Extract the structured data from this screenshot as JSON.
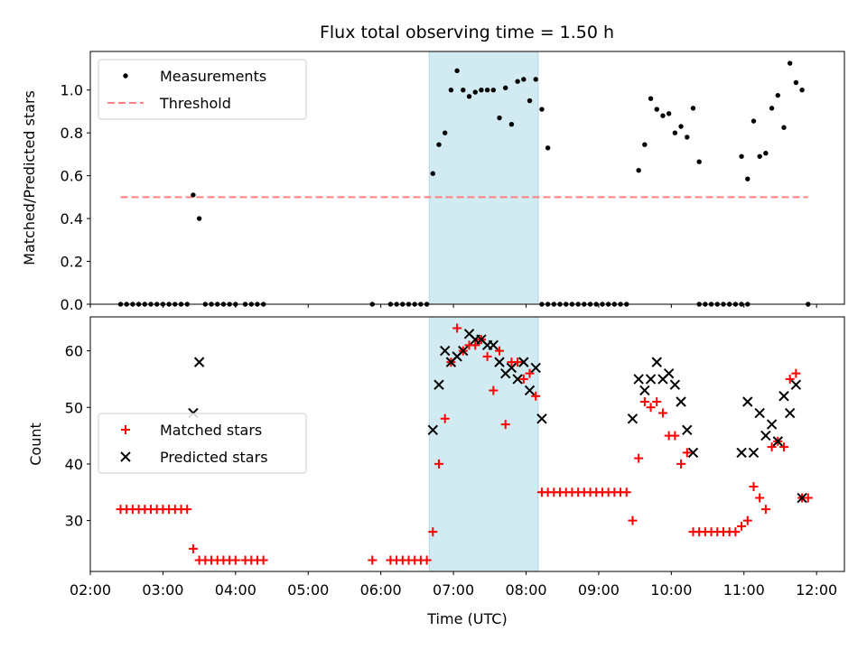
{
  "title": "Flux total observing time = 1.50 h",
  "colors": {
    "threshold": "#ff7f7f",
    "matched": "#ff0000",
    "predicted": "#000000",
    "measurement": "#000000",
    "shade": "#add8e6"
  },
  "chart_data": [
    {
      "type": "scatter",
      "ylabel": "Matched/Predicted stars",
      "xlabel": "",
      "xlim": [
        "02:00",
        "12:23"
      ],
      "ylim": [
        0,
        1.18
      ],
      "x_ticks": [
        "02:00",
        "03:00",
        "04:00",
        "05:00",
        "06:00",
        "07:00",
        "08:00",
        "09:00",
        "10:00",
        "11:00",
        "12:00"
      ],
      "y_ticks": [
        "0.0",
        "0.2",
        "0.4",
        "0.6",
        "0.8",
        "1.0"
      ],
      "y_tick_values": [
        0,
        0.2,
        0.4,
        0.6,
        0.8,
        1.0
      ],
      "shaded_span": [
        "06:40",
        "08:10"
      ],
      "legend": {
        "location": "upper left",
        "entries": [
          "Measurements",
          "Threshold"
        ]
      },
      "threshold": {
        "name": "Threshold",
        "value": 0.5,
        "x_range": [
          "02:25",
          "11:53"
        ]
      },
      "series": [
        {
          "name": "Measurements",
          "points": [
            [
              "02:25",
              0
            ],
            [
              "02:30",
              0
            ],
            [
              "02:35",
              0
            ],
            [
              "02:40",
              0
            ],
            [
              "02:45",
              0
            ],
            [
              "02:50",
              0
            ],
            [
              "02:55",
              0
            ],
            [
              "03:00",
              0
            ],
            [
              "03:05",
              0
            ],
            [
              "03:10",
              0
            ],
            [
              "03:15",
              0
            ],
            [
              "03:20",
              0
            ],
            [
              "03:25",
              0.51
            ],
            [
              "03:30",
              0.4
            ],
            [
              "03:35",
              0
            ],
            [
              "03:40",
              0
            ],
            [
              "03:45",
              0
            ],
            [
              "03:50",
              0
            ],
            [
              "03:55",
              0
            ],
            [
              "04:00",
              0
            ],
            [
              "04:08",
              0
            ],
            [
              "04:13",
              0
            ],
            [
              "04:18",
              0
            ],
            [
              "04:23",
              0
            ],
            [
              "05:53",
              0
            ],
            [
              "06:08",
              0
            ],
            [
              "06:13",
              0
            ],
            [
              "06:18",
              0
            ],
            [
              "06:23",
              0
            ],
            [
              "06:28",
              0
            ],
            [
              "06:33",
              0
            ],
            [
              "06:38",
              0
            ],
            [
              "06:43",
              0.61
            ],
            [
              "06:48",
              0.745
            ],
            [
              "06:53",
              0.8
            ],
            [
              "06:58",
              1.0
            ],
            [
              "07:03",
              1.09
            ],
            [
              "07:08",
              1.0
            ],
            [
              "07:13",
              0.97
            ],
            [
              "07:18",
              0.99
            ],
            [
              "07:23",
              1.0
            ],
            [
              "07:28",
              1.0
            ],
            [
              "07:33",
              1.0
            ],
            [
              "07:38",
              0.87
            ],
            [
              "07:43",
              1.01
            ],
            [
              "07:48",
              0.84
            ],
            [
              "07:53",
              1.04
            ],
            [
              "07:58",
              1.05
            ],
            [
              "08:03",
              0.95
            ],
            [
              "08:08",
              1.05
            ],
            [
              "08:13",
              0.91
            ],
            [
              "08:18",
              0.73
            ],
            [
              "08:13",
              0
            ],
            [
              "08:18",
              0
            ],
            [
              "08:23",
              0
            ],
            [
              "08:28",
              0
            ],
            [
              "08:33",
              0
            ],
            [
              "08:38",
              0
            ],
            [
              "08:43",
              0
            ],
            [
              "08:48",
              0
            ],
            [
              "08:53",
              0
            ],
            [
              "08:58",
              0
            ],
            [
              "09:03",
              0
            ],
            [
              "09:08",
              0
            ],
            [
              "09:13",
              0
            ],
            [
              "09:18",
              0
            ],
            [
              "09:23",
              0
            ],
            [
              "09:33",
              0.625
            ],
            [
              "09:38",
              0.745
            ],
            [
              "09:43",
              0.96
            ],
            [
              "09:48",
              0.91
            ],
            [
              "09:53",
              0.88
            ],
            [
              "09:58",
              0.89
            ],
            [
              "10:03",
              0.8
            ],
            [
              "10:08",
              0.83
            ],
            [
              "10:13",
              0.78
            ],
            [
              "10:18",
              0.915
            ],
            [
              "10:23",
              0.665
            ],
            [
              "10:23",
              0
            ],
            [
              "10:28",
              0
            ],
            [
              "10:33",
              0
            ],
            [
              "10:38",
              0
            ],
            [
              "10:43",
              0
            ],
            [
              "10:48",
              0
            ],
            [
              "10:53",
              0
            ],
            [
              "10:58",
              0
            ],
            [
              "11:03",
              0
            ],
            [
              "10:58",
              0.69
            ],
            [
              "11:03",
              0.585
            ],
            [
              "11:08",
              0.855
            ],
            [
              "11:13",
              0.69
            ],
            [
              "11:18",
              0.705
            ],
            [
              "11:23",
              0.915
            ],
            [
              "11:28",
              0.975
            ],
            [
              "11:33",
              0.825
            ],
            [
              "11:38",
              1.125
            ],
            [
              "11:43",
              1.035
            ],
            [
              "11:48",
              1.0
            ],
            [
              "11:53",
              0
            ]
          ]
        }
      ]
    },
    {
      "type": "scatter",
      "ylabel": "Count",
      "xlabel": "Time (UTC)",
      "xlim": [
        "02:00",
        "12:23"
      ],
      "ylim": [
        21,
        66
      ],
      "x_ticks": [
        "02:00",
        "03:00",
        "04:00",
        "05:00",
        "06:00",
        "07:00",
        "08:00",
        "09:00",
        "10:00",
        "11:00",
        "12:00"
      ],
      "y_ticks": [
        "30",
        "40",
        "50",
        "60"
      ],
      "y_tick_values": [
        30,
        40,
        50,
        60
      ],
      "shaded_span": [
        "06:40",
        "08:10"
      ],
      "legend": {
        "location": "center left",
        "entries": [
          "Matched stars",
          "Predicted stars"
        ]
      },
      "series": [
        {
          "name": "Matched stars",
          "marker": "+",
          "points": [
            [
              "02:25",
              32
            ],
            [
              "02:30",
              32
            ],
            [
              "02:35",
              32
            ],
            [
              "02:40",
              32
            ],
            [
              "02:45",
              32
            ],
            [
              "02:50",
              32
            ],
            [
              "02:55",
              32
            ],
            [
              "03:00",
              32
            ],
            [
              "03:05",
              32
            ],
            [
              "03:10",
              32
            ],
            [
              "03:15",
              32
            ],
            [
              "03:20",
              32
            ],
            [
              "03:25",
              25
            ],
            [
              "03:30",
              23
            ],
            [
              "03:35",
              23
            ],
            [
              "03:40",
              23
            ],
            [
              "03:45",
              23
            ],
            [
              "03:50",
              23
            ],
            [
              "03:55",
              23
            ],
            [
              "04:00",
              23
            ],
            [
              "04:08",
              23
            ],
            [
              "04:13",
              23
            ],
            [
              "04:18",
              23
            ],
            [
              "04:23",
              23
            ],
            [
              "05:53",
              23
            ],
            [
              "06:08",
              23
            ],
            [
              "06:13",
              23
            ],
            [
              "06:18",
              23
            ],
            [
              "06:23",
              23
            ],
            [
              "06:28",
              23
            ],
            [
              "06:33",
              23
            ],
            [
              "06:38",
              23
            ],
            [
              "06:43",
              28
            ],
            [
              "06:48",
              40
            ],
            [
              "06:53",
              48
            ],
            [
              "06:58",
              58
            ],
            [
              "07:03",
              64
            ],
            [
              "07:08",
              60
            ],
            [
              "07:13",
              61
            ],
            [
              "07:18",
              61
            ],
            [
              "07:23",
              62
            ],
            [
              "07:28",
              59
            ],
            [
              "07:33",
              53
            ],
            [
              "07:38",
              60
            ],
            [
              "07:43",
              47
            ],
            [
              "07:48",
              58
            ],
            [
              "07:53",
              58
            ],
            [
              "07:58",
              55
            ],
            [
              "08:03",
              56
            ],
            [
              "08:08",
              52
            ],
            [
              "08:13",
              35
            ],
            [
              "08:18",
              35
            ],
            [
              "08:23",
              35
            ],
            [
              "08:28",
              35
            ],
            [
              "08:33",
              35
            ],
            [
              "08:38",
              35
            ],
            [
              "08:43",
              35
            ],
            [
              "08:48",
              35
            ],
            [
              "08:53",
              35
            ],
            [
              "08:58",
              35
            ],
            [
              "09:03",
              35
            ],
            [
              "09:08",
              35
            ],
            [
              "09:13",
              35
            ],
            [
              "09:18",
              35
            ],
            [
              "09:23",
              35
            ],
            [
              "09:28",
              30
            ],
            [
              "09:33",
              41
            ],
            [
              "09:38",
              51
            ],
            [
              "09:43",
              50
            ],
            [
              "09:48",
              51
            ],
            [
              "09:53",
              49
            ],
            [
              "09:58",
              45
            ],
            [
              "10:03",
              45
            ],
            [
              "10:08",
              40
            ],
            [
              "10:13",
              42
            ],
            [
              "10:18",
              28
            ],
            [
              "10:23",
              28
            ],
            [
              "10:28",
              28
            ],
            [
              "10:33",
              28
            ],
            [
              "10:38",
              28
            ],
            [
              "10:43",
              28
            ],
            [
              "10:48",
              28
            ],
            [
              "10:53",
              28
            ],
            [
              "10:58",
              29
            ],
            [
              "11:03",
              30
            ],
            [
              "11:08",
              36
            ],
            [
              "11:13",
              34
            ],
            [
              "11:18",
              32
            ],
            [
              "11:23",
              43
            ],
            [
              "11:28",
              44
            ],
            [
              "11:33",
              43
            ],
            [
              "11:38",
              55
            ],
            [
              "11:43",
              56
            ],
            [
              "11:48",
              34
            ],
            [
              "11:53",
              34
            ]
          ]
        },
        {
          "name": "Predicted stars",
          "marker": "x",
          "points": [
            [
              "03:25",
              49
            ],
            [
              "03:30",
              58
            ],
            [
              "06:43",
              46
            ],
            [
              "06:48",
              54
            ],
            [
              "06:53",
              60
            ],
            [
              "06:58",
              58
            ],
            [
              "07:03",
              59
            ],
            [
              "07:08",
              60
            ],
            [
              "07:13",
              63
            ],
            [
              "07:18",
              62
            ],
            [
              "07:23",
              62
            ],
            [
              "07:28",
              61
            ],
            [
              "07:33",
              61
            ],
            [
              "07:38",
              58
            ],
            [
              "07:43",
              56
            ],
            [
              "07:48",
              57
            ],
            [
              "07:53",
              55
            ],
            [
              "07:58",
              58
            ],
            [
              "08:03",
              53
            ],
            [
              "08:08",
              57
            ],
            [
              "08:13",
              48
            ],
            [
              "09:28",
              48
            ],
            [
              "09:33",
              55
            ],
            [
              "09:38",
              53
            ],
            [
              "09:43",
              55
            ],
            [
              "09:48",
              58
            ],
            [
              "09:53",
              55
            ],
            [
              "09:58",
              56
            ],
            [
              "10:03",
              54
            ],
            [
              "10:08",
              51
            ],
            [
              "10:13",
              46
            ],
            [
              "10:18",
              42
            ],
            [
              "10:58",
              42
            ],
            [
              "11:03",
              51
            ],
            [
              "11:08",
              42
            ],
            [
              "11:13",
              49
            ],
            [
              "11:18",
              45
            ],
            [
              "11:23",
              47
            ],
            [
              "11:28",
              44
            ],
            [
              "11:33",
              52
            ],
            [
              "11:38",
              49
            ],
            [
              "11:43",
              54
            ],
            [
              "11:48",
              34
            ]
          ]
        }
      ]
    }
  ]
}
